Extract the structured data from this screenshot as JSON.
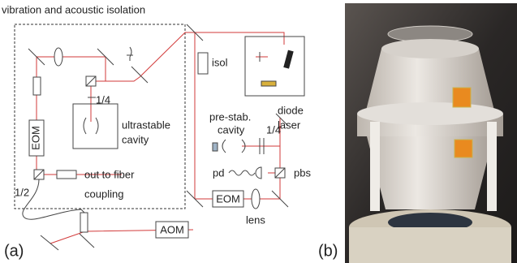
{
  "panel_a": {
    "label": "(a)",
    "isolation_box": "vibration and acoustic isolation",
    "cavity_waveplate": "1/4",
    "cavity_eom": "EOM",
    "ultrastable_cavity": [
      "ultrastable",
      "cavity"
    ],
    "fiber_waveplate": "1/2",
    "fiber_coupling": [
      "out to fiber",
      "coupling"
    ],
    "isolator": "isol",
    "diode_laser": [
      "diode",
      "laser"
    ],
    "prestab_cavity": [
      "pre-stab.",
      "cavity"
    ],
    "prestab_waveplate": "1/4",
    "photodiode": "pd",
    "beam_splitter": "pbs",
    "laser_eom": "EOM",
    "lens": "lens",
    "aom": "AOM"
  },
  "panel_b": {
    "label": "(b)"
  }
}
